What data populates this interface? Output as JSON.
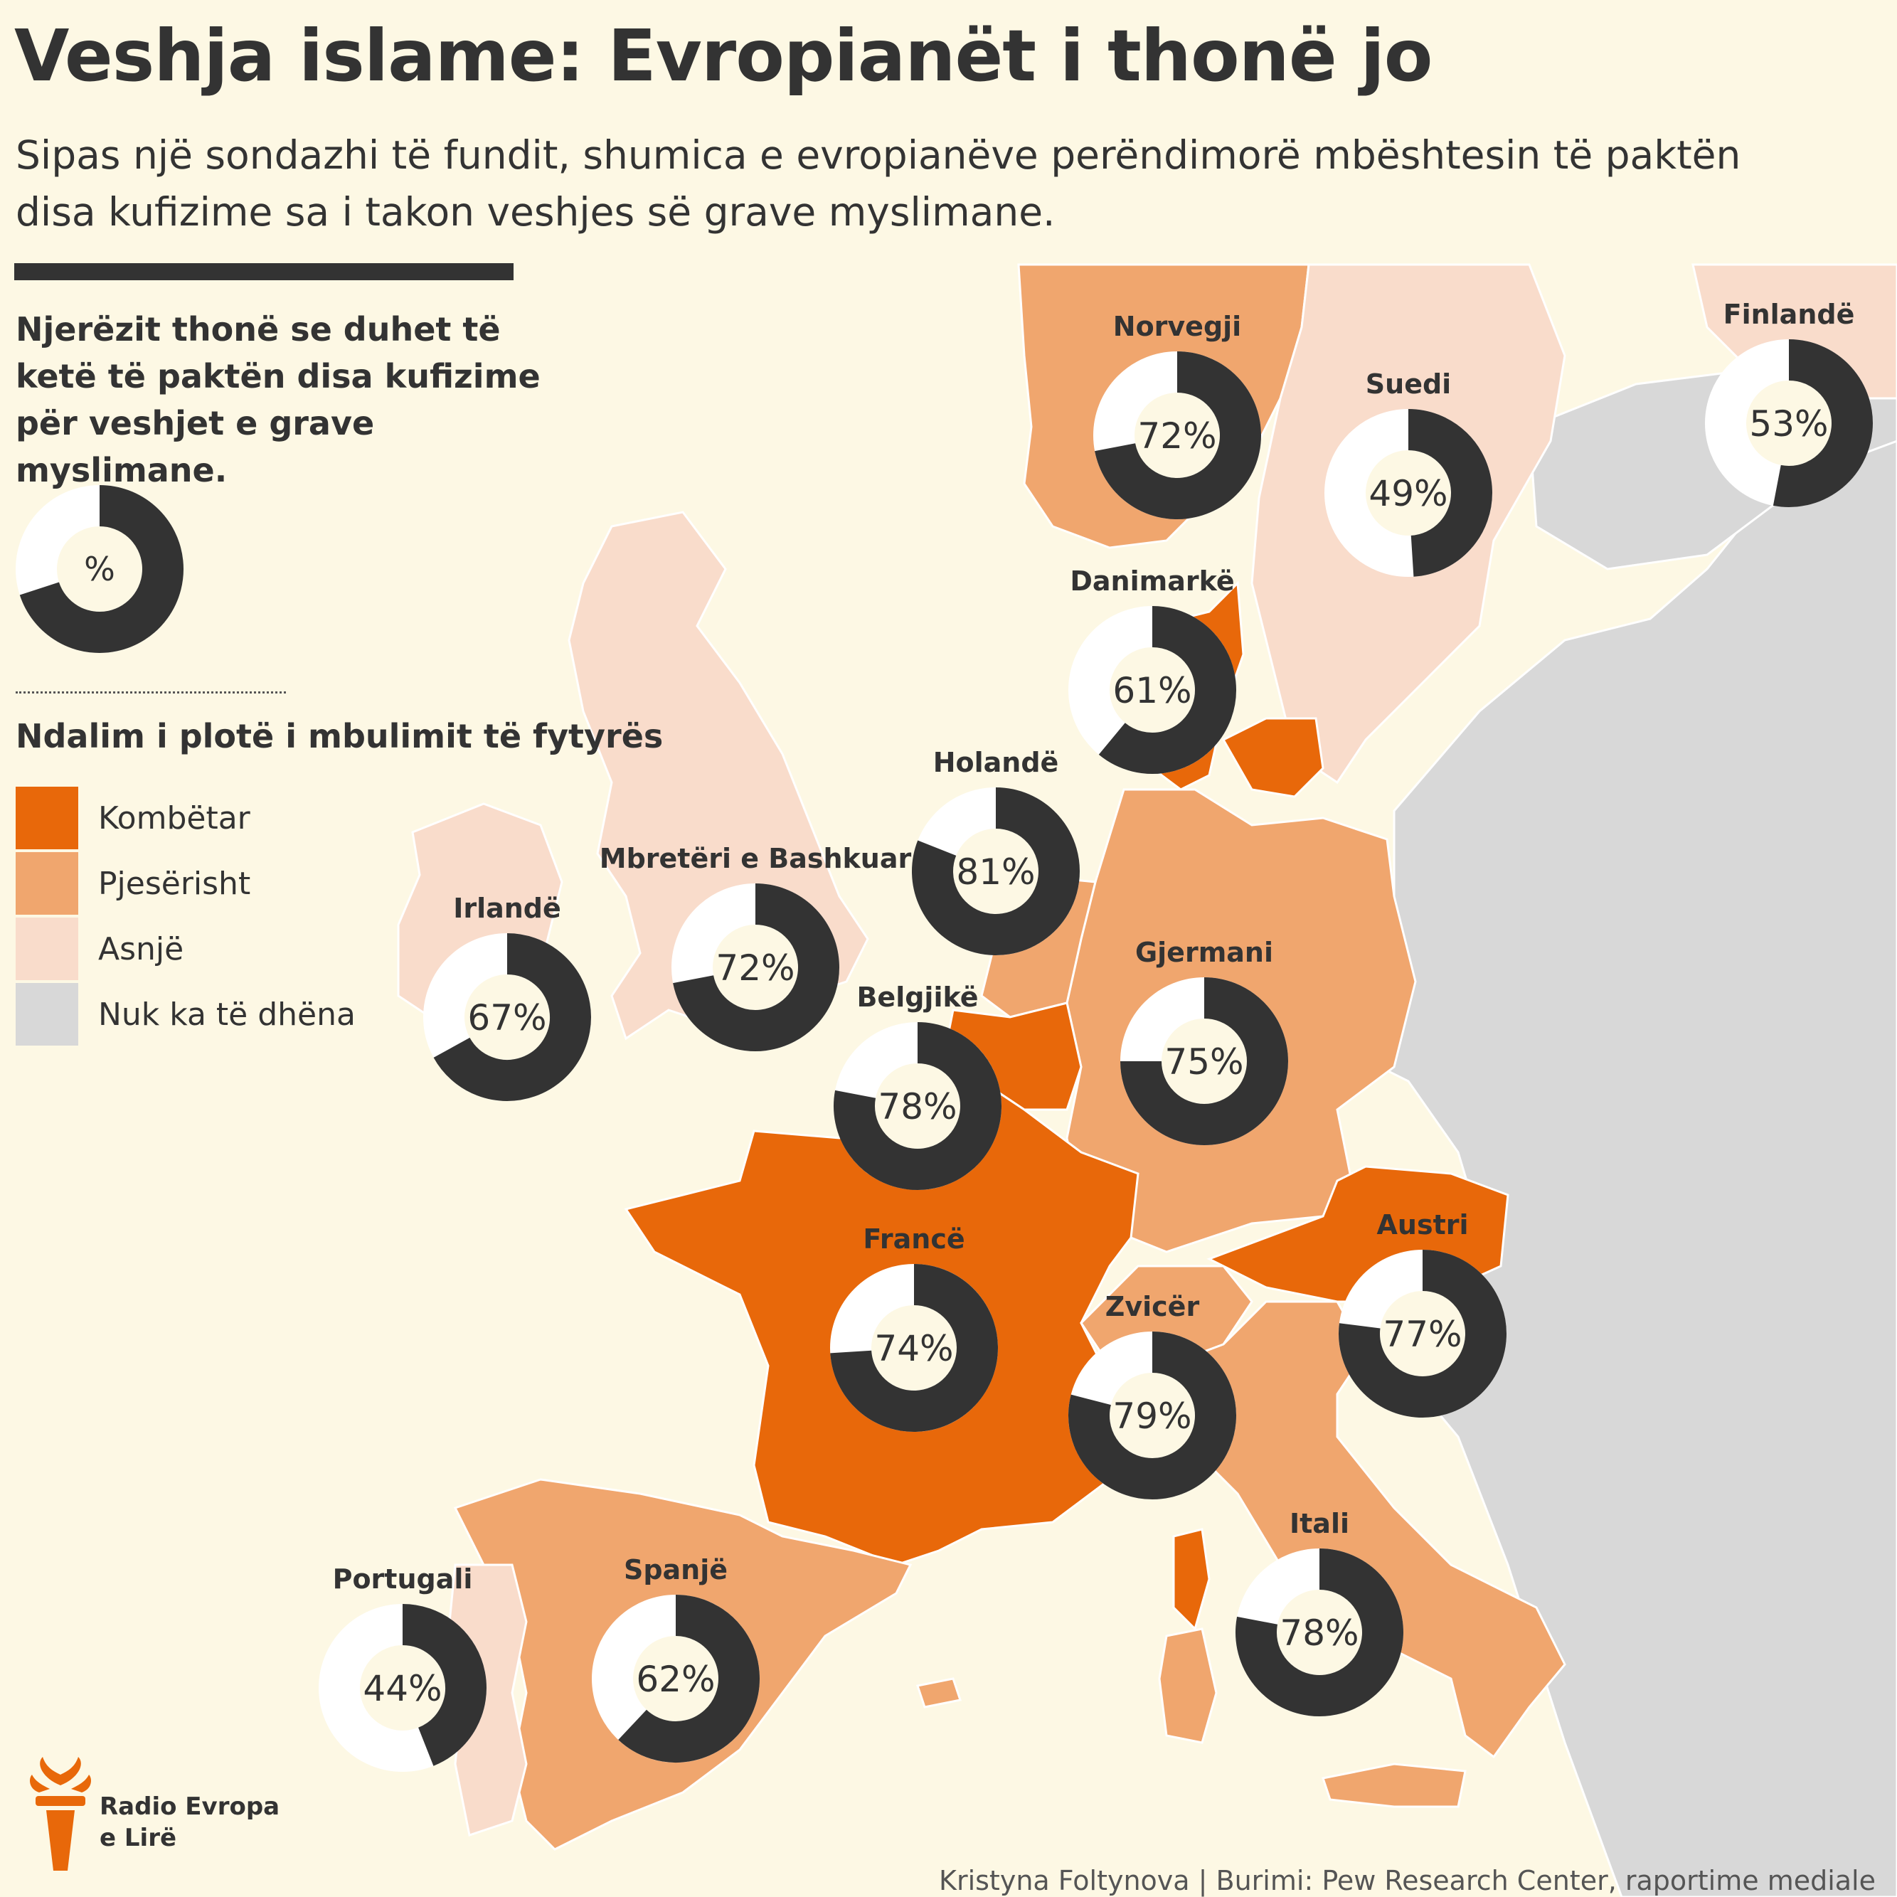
{
  "title": "Veshja islame: Evropianët i thonë jo",
  "subtitle": "Sipas një sondazhi të fundit, shumica e evropianëve perëndimorë mbështesin të paktën disa kufizime sa i takon veshjes së grave myslimane.",
  "legend": {
    "heading": "Njerëzit thonë se duhet të ketë të paktën disa kufizime për veshjet e grave myslimane.",
    "donut_symbol": "%",
    "ban_heading": "Ndalim i plotë i mbulimit të fytyrës",
    "categories": [
      {
        "label": "Kombëtar",
        "color": "#e8680a"
      },
      {
        "label": "Pjesërisht",
        "color": "#f0a66e"
      },
      {
        "label": "Asnjë",
        "color": "#f9dccb"
      },
      {
        "label": "Nuk ka të dhëna",
        "color": "#d8d8d8"
      }
    ]
  },
  "colors": {
    "background": "#fdf8e4",
    "donut_dark": "#333333",
    "donut_light": "#ffffff",
    "inner": "#fdf8e4"
  },
  "countries": [
    {
      "name": "Norvegji",
      "value": 72,
      "label": "72%",
      "ban": "Pjesërisht"
    },
    {
      "name": "Suedi",
      "value": 49,
      "label": "49%",
      "ban": "Asnjë"
    },
    {
      "name": "Finlandë",
      "value": 53,
      "label": "53%",
      "ban": "Asnjë"
    },
    {
      "name": "Danimarkë",
      "value": 61,
      "label": "61%",
      "ban": "Kombëtar"
    },
    {
      "name": "Holandë",
      "value": 81,
      "label": "81%",
      "ban": "Pjesërisht"
    },
    {
      "name": "Mbretëri e Bashkuar",
      "value": 72,
      "label": "72%",
      "ban": "Asnjë"
    },
    {
      "name": "Irlandë",
      "value": 67,
      "label": "67%",
      "ban": "Asnjë"
    },
    {
      "name": "Belgjikë",
      "value": 78,
      "label": "78%",
      "ban": "Kombëtar"
    },
    {
      "name": "Gjermani",
      "value": 75,
      "label": "75%",
      "ban": "Pjesërisht"
    },
    {
      "name": "Francë",
      "value": 74,
      "label": "74%",
      "ban": "Kombëtar"
    },
    {
      "name": "Austri",
      "value": 77,
      "label": "77%",
      "ban": "Kombëtar"
    },
    {
      "name": "Zvicër",
      "value": 79,
      "label": "79%",
      "ban": "Pjesërisht"
    },
    {
      "name": "Itali",
      "value": 78,
      "label": "78%",
      "ban": "Pjesërisht"
    },
    {
      "name": "Spanjë",
      "value": 62,
      "label": "62%",
      "ban": "Pjesërisht"
    },
    {
      "name": "Portugali",
      "value": 44,
      "label": "44%",
      "ban": "Asnjë"
    }
  ],
  "brand": {
    "line1": "Radio Evropa",
    "line2": "e Lirë"
  },
  "credit": "Kristyna Foltynova | Burimi: Pew Research Center, raportime mediale"
}
